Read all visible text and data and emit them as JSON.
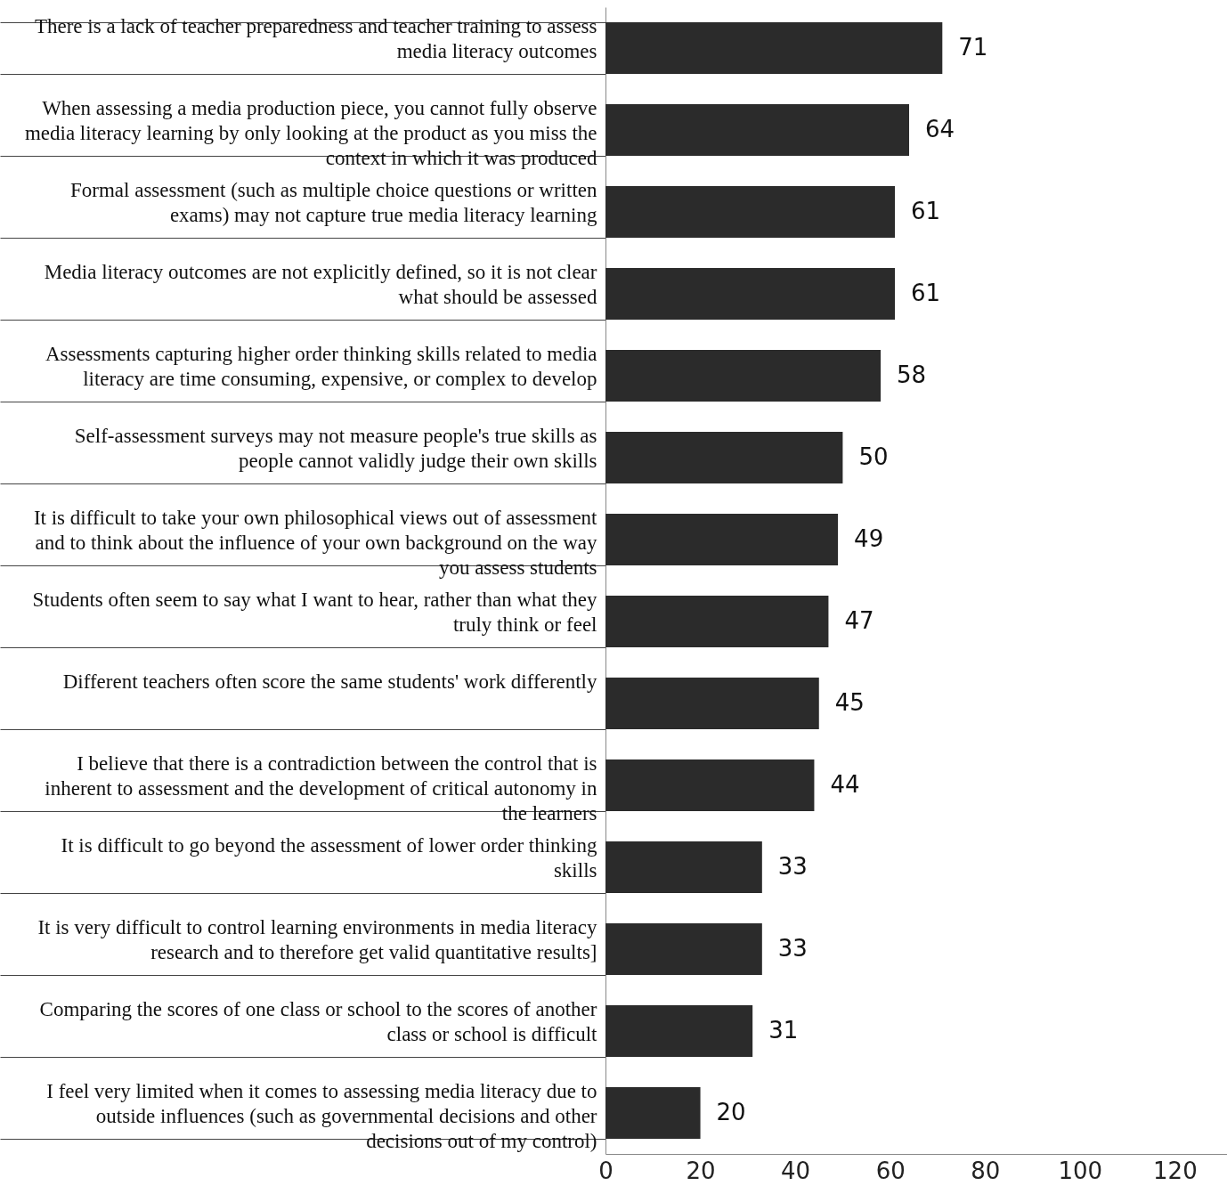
{
  "chart_data": {
    "type": "bar",
    "orientation": "horizontal",
    "categories": [
      "There is a lack of teacher  preparedness and teacher training to assess media literacy outcomes",
      "When assessing a media production piece, you cannot fully observe media literacy learning by only looking at the product as you miss the context in which it was produced",
      "Formal assessment (such as multiple choice questions or written exams) may not capture true media literacy learning",
      "Media literacy outcomes are not explicitly defined, so it is not clear what should be assessed",
      "Assessments capturing higher order thinking skills related to media literacy are time consuming, expensive, or complex to develop",
      "Self-assessment surveys may not measure people's true skills as people cannot validly judge their own skills",
      "It is difficult to take your own philosophical views out of assessment and to think about the influence of your own background on the way you assess students",
      "Students often seem to say what I want to hear, rather than what they truly think or feel",
      "Different teachers often score the same students' work differently",
      "I believe that there is a contradiction between the control that is inherent to assessment and the development of critical autonomy in the learners",
      "It is difficult to go beyond the assessment of lower order thinking skills",
      "It is very difficult to control learning environments in media literacy research and to therefore get valid quantitative results]",
      "Comparing the scores of one class or school to the scores of another class or school is difficult",
      "I feel very limited when it comes to assessing media literacy due to outside influences (such as governmental decisions and other decisions out of my control)"
    ],
    "values": [
      71,
      64,
      61,
      61,
      58,
      50,
      49,
      47,
      45,
      44,
      33,
      33,
      31,
      20
    ],
    "color": "#2b2b2b",
    "data_labels": true,
    "xlim": [
      0,
      131
    ],
    "xticks": [
      0,
      20,
      40,
      60,
      80,
      100,
      120
    ],
    "grid": false
  }
}
